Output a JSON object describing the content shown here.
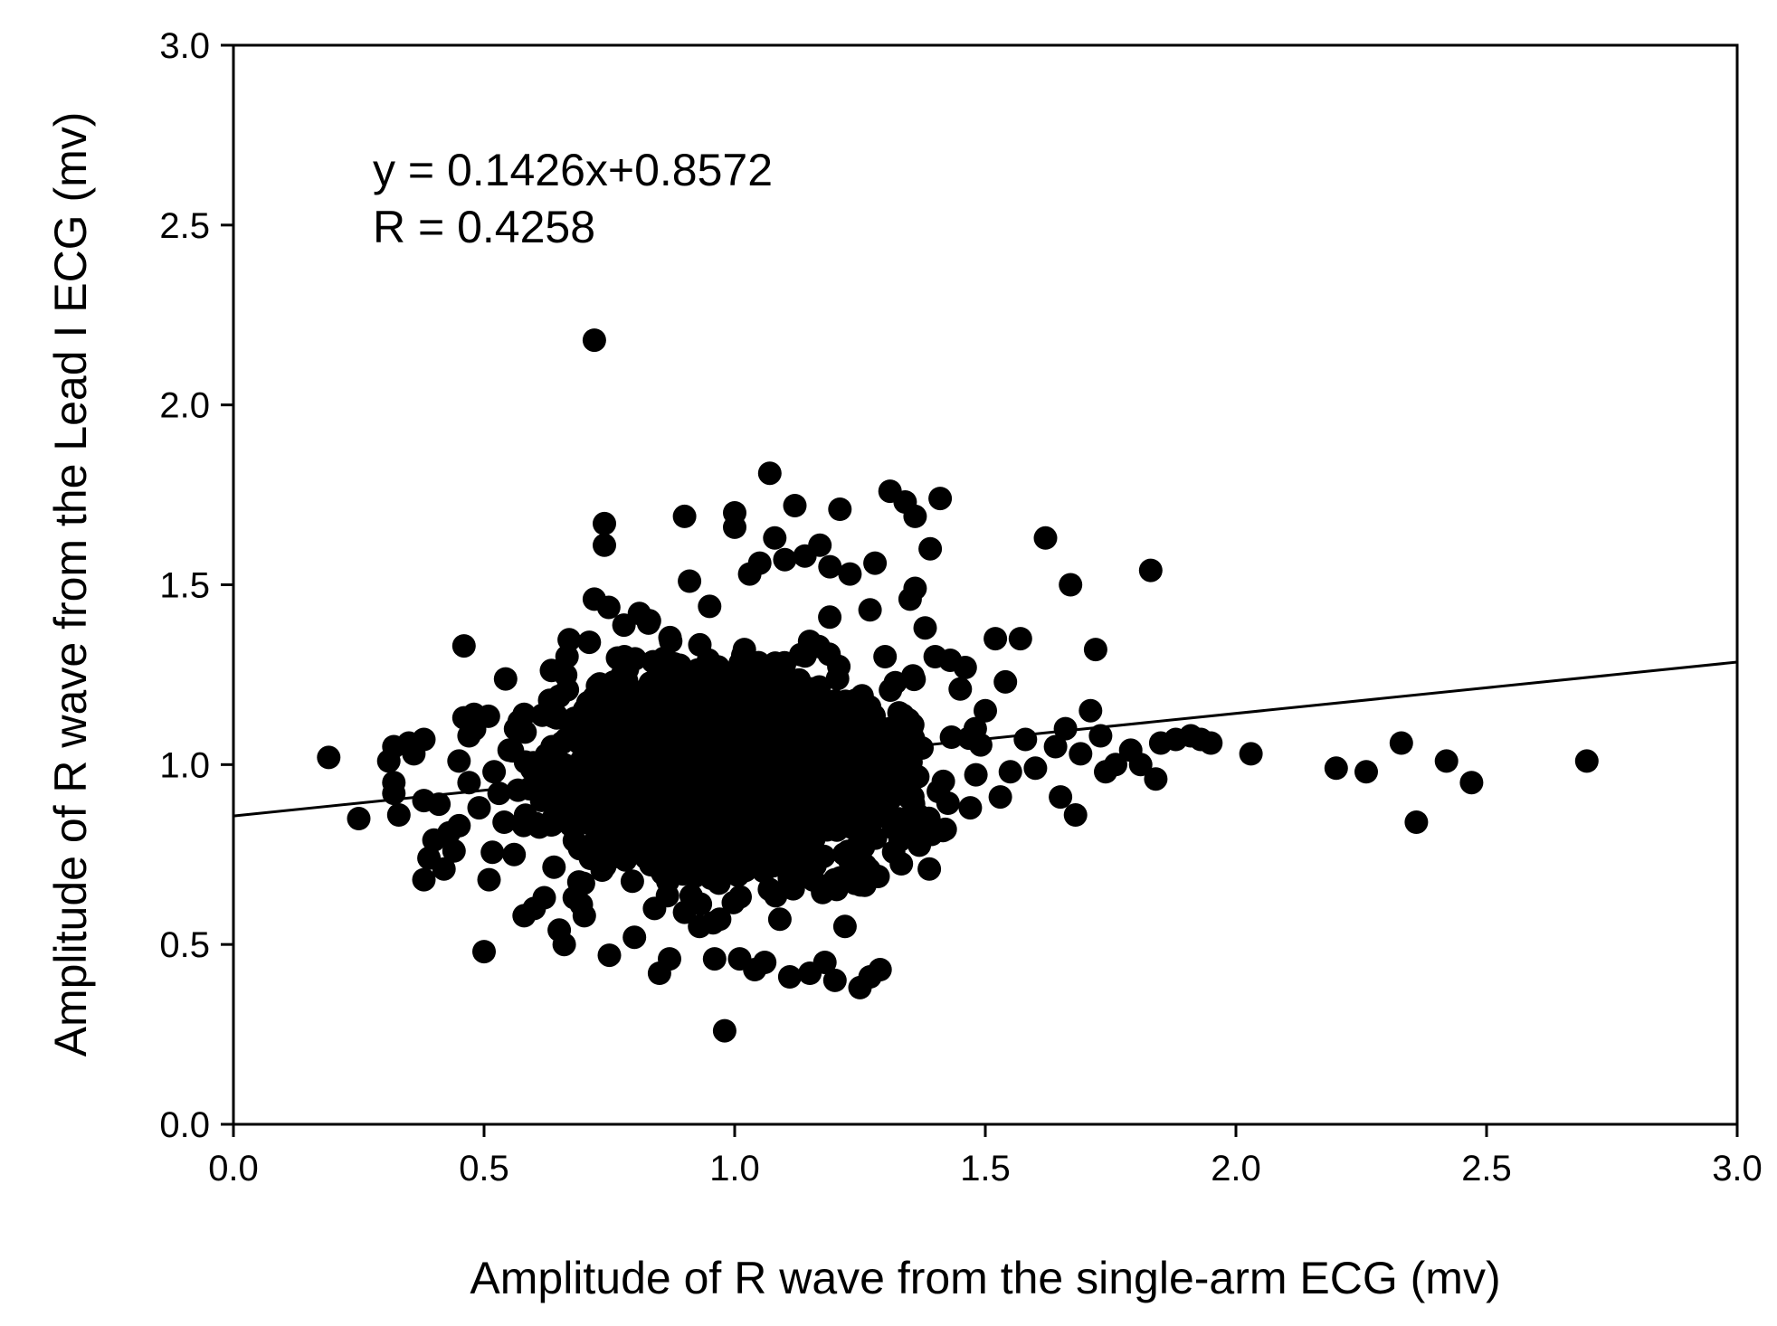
{
  "chart_data": {
    "type": "scatter",
    "title": "",
    "xlabel": "Amplitude of R wave from the single-arm ECG (mv)",
    "ylabel": "Amplitude of R wave from the Lead I ECG (mv)",
    "xlim": [
      0.0,
      3.0
    ],
    "ylim": [
      0.0,
      3.0
    ],
    "x_ticks": [
      "0.0",
      "0.5",
      "1.0",
      "1.5",
      "2.0",
      "2.5",
      "3.0"
    ],
    "y_ticks": [
      "0.0",
      "0.5",
      "1.0",
      "1.5",
      "2.0",
      "2.5",
      "3.0"
    ],
    "grid": false,
    "marker_color": "#000000",
    "annotations": {
      "equation": "y = 0.1426x+0.8572",
      "r_value": "R = 0.4258"
    },
    "regression": {
      "slope": 0.1426,
      "intercept": 0.8572
    },
    "dense_cluster": {
      "center": [
        0.98,
        0.98
      ],
      "spread": [
        0.15,
        0.13
      ],
      "count": 2600
    },
    "points": [
      [
        0.19,
        1.02
      ],
      [
        0.25,
        0.85
      ],
      [
        0.31,
        1.01
      ],
      [
        0.32,
        1.05
      ],
      [
        0.32,
        0.92
      ],
      [
        0.32,
        0.95
      ],
      [
        0.33,
        0.86
      ],
      [
        0.35,
        1.06
      ],
      [
        0.36,
        1.03
      ],
      [
        0.38,
        1.07
      ],
      [
        0.38,
        0.68
      ],
      [
        0.38,
        0.9
      ],
      [
        0.39,
        0.74
      ],
      [
        0.4,
        0.79
      ],
      [
        0.41,
        0.89
      ],
      [
        0.42,
        0.71
      ],
      [
        0.43,
        0.81
      ],
      [
        0.44,
        0.76
      ],
      [
        0.45,
        1.01
      ],
      [
        0.45,
        0.83
      ],
      [
        0.46,
        1.33
      ],
      [
        0.46,
        1.13
      ],
      [
        0.47,
        0.95
      ],
      [
        0.47,
        1.08
      ],
      [
        0.48,
        1.14
      ],
      [
        0.49,
        0.88
      ],
      [
        0.5,
        0.48
      ],
      [
        0.51,
        0.68
      ],
      [
        0.52,
        0.98
      ],
      [
        0.53,
        0.92
      ],
      [
        0.54,
        0.84
      ],
      [
        0.55,
        1.04
      ],
      [
        0.56,
        0.75
      ],
      [
        0.57,
        1.12
      ],
      [
        0.58,
        1.14
      ],
      [
        0.58,
        0.58
      ],
      [
        0.6,
        0.6
      ],
      [
        0.61,
        0.95
      ],
      [
        0.62,
        0.63
      ],
      [
        0.64,
        1.18
      ],
      [
        0.65,
        1.19
      ],
      [
        0.65,
        0.54
      ],
      [
        0.66,
        0.5
      ],
      [
        0.67,
        0.86
      ],
      [
        0.68,
        0.63
      ],
      [
        0.7,
        0.58
      ],
      [
        0.71,
        1.34
      ],
      [
        0.72,
        2.18
      ],
      [
        0.72,
        1.46
      ],
      [
        0.74,
        1.67
      ],
      [
        0.74,
        1.61
      ],
      [
        0.75,
        0.47
      ],
      [
        0.78,
        1.3
      ],
      [
        0.8,
        0.52
      ],
      [
        0.81,
        1.42
      ],
      [
        0.83,
        1.4
      ],
      [
        0.84,
        0.6
      ],
      [
        0.85,
        0.42
      ],
      [
        0.87,
        0.46
      ],
      [
        0.88,
        1.28
      ],
      [
        0.9,
        1.69
      ],
      [
        0.91,
        1.51
      ],
      [
        0.93,
        0.55
      ],
      [
        0.95,
        1.44
      ],
      [
        0.96,
        0.46
      ],
      [
        0.97,
        0.57
      ],
      [
        0.98,
        0.26
      ],
      [
        1.0,
        1.7
      ],
      [
        1.0,
        1.66
      ],
      [
        1.01,
        0.46
      ],
      [
        1.03,
        1.53
      ],
      [
        1.04,
        0.43
      ],
      [
        1.05,
        1.56
      ],
      [
        1.06,
        0.45
      ],
      [
        1.07,
        1.81
      ],
      [
        1.08,
        1.63
      ],
      [
        1.09,
        0.57
      ],
      [
        1.1,
        1.57
      ],
      [
        1.11,
        0.41
      ],
      [
        1.12,
        1.72
      ],
      [
        1.14,
        1.58
      ],
      [
        1.15,
        0.42
      ],
      [
        1.17,
        1.61
      ],
      [
        1.18,
        0.45
      ],
      [
        1.19,
        1.55
      ],
      [
        1.2,
        0.4
      ],
      [
        1.21,
        1.71
      ],
      [
        1.22,
        0.55
      ],
      [
        1.23,
        1.53
      ],
      [
        1.24,
        0.67
      ],
      [
        1.25,
        0.38
      ],
      [
        1.26,
        0.72
      ],
      [
        1.27,
        1.43
      ],
      [
        1.27,
        0.41
      ],
      [
        1.28,
        1.56
      ],
      [
        1.29,
        0.43
      ],
      [
        1.3,
        1.3
      ],
      [
        1.31,
        1.76
      ],
      [
        1.33,
        0.79
      ],
      [
        1.34,
        1.73
      ],
      [
        1.35,
        1.46
      ],
      [
        1.36,
        1.69
      ],
      [
        1.36,
        1.49
      ],
      [
        1.37,
        0.81
      ],
      [
        1.38,
        1.38
      ],
      [
        1.39,
        1.6
      ],
      [
        1.4,
        1.3
      ],
      [
        1.41,
        1.74
      ],
      [
        1.42,
        0.82
      ],
      [
        1.43,
        1.29
      ],
      [
        1.45,
        1.21
      ],
      [
        1.46,
        1.27
      ],
      [
        1.47,
        0.88
      ],
      [
        1.48,
        1.1
      ],
      [
        1.5,
        1.15
      ],
      [
        1.52,
        1.35
      ],
      [
        1.53,
        0.91
      ],
      [
        1.54,
        1.23
      ],
      [
        1.55,
        0.98
      ],
      [
        1.57,
        1.35
      ],
      [
        1.58,
        1.07
      ],
      [
        1.6,
        0.99
      ],
      [
        1.62,
        1.63
      ],
      [
        1.64,
        1.05
      ],
      [
        1.65,
        0.91
      ],
      [
        1.66,
        1.1
      ],
      [
        1.67,
        1.5
      ],
      [
        1.68,
        0.86
      ],
      [
        1.69,
        1.03
      ],
      [
        1.71,
        1.15
      ],
      [
        1.72,
        1.32
      ],
      [
        1.73,
        1.08
      ],
      [
        1.74,
        0.98
      ],
      [
        1.76,
        1.0
      ],
      [
        1.79,
        1.04
      ],
      [
        1.81,
        1.0
      ],
      [
        1.83,
        1.54
      ],
      [
        1.84,
        0.96
      ],
      [
        1.85,
        1.06
      ],
      [
        1.88,
        1.07
      ],
      [
        1.91,
        1.08
      ],
      [
        1.93,
        1.07
      ],
      [
        1.95,
        1.06
      ],
      [
        2.03,
        1.03
      ],
      [
        2.2,
        0.99
      ],
      [
        2.26,
        0.98
      ],
      [
        2.33,
        1.06
      ],
      [
        2.36,
        0.84
      ],
      [
        2.42,
        1.01
      ],
      [
        2.47,
        0.95
      ],
      [
        2.7,
        1.01
      ]
    ]
  }
}
